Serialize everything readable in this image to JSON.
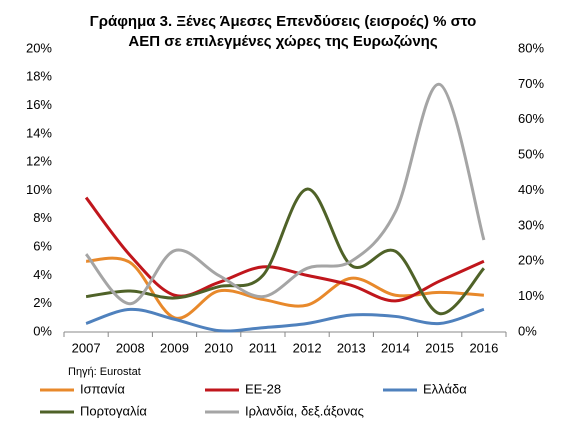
{
  "chart_data": {
    "type": "line",
    "title": [
      "Γράφημα 3. Ξένες Άμεσες Επενδύσεις (εισροές) % στο",
      "ΑΕΠ σε επιλεγμένες χώρες της Ευρωζώνης"
    ],
    "source": "Πηγή: Eurostat",
    "categories": [
      "2007",
      "2008",
      "2009",
      "2010",
      "2011",
      "2012",
      "2013",
      "2014",
      "2015",
      "2016"
    ],
    "ylim": [
      0,
      20
    ],
    "yticks": [
      {
        "value": 0,
        "label": "0%"
      },
      {
        "value": 2,
        "label": "2%"
      },
      {
        "value": 4,
        "label": "4%"
      },
      {
        "value": 6,
        "label": "6%"
      },
      {
        "value": 8,
        "label": "8%"
      },
      {
        "value": 10,
        "label": "10%"
      },
      {
        "value": 12,
        "label": "12%"
      },
      {
        "value": 14,
        "label": "14%"
      },
      {
        "value": 16,
        "label": "16%"
      },
      {
        "value": 18,
        "label": "18%"
      },
      {
        "value": 20,
        "label": "20%"
      }
    ],
    "y2lim": [
      0,
      80
    ],
    "y2ticks": [
      {
        "value": 0,
        "label": "0%"
      },
      {
        "value": 10,
        "label": "10%"
      },
      {
        "value": 20,
        "label": "20%"
      },
      {
        "value": 30,
        "label": "30%"
      },
      {
        "value": 40,
        "label": "40%"
      },
      {
        "value": 50,
        "label": "50%"
      },
      {
        "value": 60,
        "label": "60%"
      },
      {
        "value": 70,
        "label": "70%"
      },
      {
        "value": 80,
        "label": "80%"
      }
    ],
    "series": [
      {
        "name": "Ισπανία",
        "color": "#e8892b",
        "values": [
          5.0,
          4.9,
          1.0,
          2.9,
          2.3,
          1.9,
          3.8,
          2.6,
          2.8,
          2.6
        ]
      },
      {
        "name": "ΕΕ-28",
        "color": "#c0161c",
        "values": [
          9.5,
          5.4,
          2.6,
          3.5,
          4.6,
          4.0,
          3.3,
          2.2,
          3.6,
          5.0
        ]
      },
      {
        "name": "Ελλάδα",
        "color": "#4f81bd",
        "values": [
          0.6,
          1.6,
          0.9,
          0.1,
          0.3,
          0.6,
          1.2,
          1.1,
          0.6,
          1.6
        ]
      },
      {
        "name": "Πορτογαλία",
        "color": "#4f6228",
        "values": [
          2.5,
          2.9,
          2.4,
          3.2,
          4.0,
          10.1,
          4.7,
          5.7,
          1.3,
          4.5
        ]
      },
      {
        "name": "Ιρλανδία, δεξ.άξονας",
        "color": "#a5a5a5",
        "axis": "y2",
        "values": [
          22,
          8,
          23,
          16,
          10,
          18,
          20,
          34,
          70,
          26
        ]
      }
    ]
  }
}
